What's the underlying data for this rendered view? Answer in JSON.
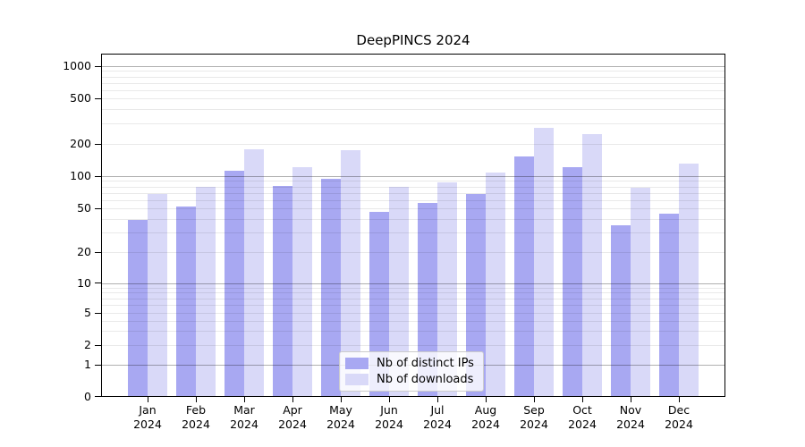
{
  "title": "DeepPINCS 2024",
  "chart_data": {
    "type": "bar",
    "title": "DeepPINCS 2024",
    "categories": [
      "Jan 2024",
      "Feb 2024",
      "Mar 2024",
      "Apr 2024",
      "May 2024",
      "Jun 2024",
      "Jul 2024",
      "Aug 2024",
      "Sep 2024",
      "Oct 2024",
      "Nov 2024",
      "Dec 2024"
    ],
    "series": [
      {
        "name": "Nb of distinct IPs",
        "color": "#a8a8f2",
        "values": [
          39,
          51,
          112,
          80,
          93,
          46,
          56,
          68,
          150,
          121,
          35,
          44
        ]
      },
      {
        "name": "Nb of downloads",
        "color": "#d9d9f8",
        "values": [
          68,
          78,
          175,
          120,
          173,
          78,
          86,
          107,
          275,
          243,
          77,
          129
        ]
      }
    ],
    "xlabel": "",
    "ylabel": "",
    "y_scale": "log (with 0 baseline)",
    "y_ticks": [
      0,
      1,
      2,
      5,
      10,
      20,
      50,
      100,
      200,
      500,
      1000
    ],
    "ylim": [
      0,
      1300
    ],
    "grid": true,
    "legend_position": "lower center"
  },
  "colors": {
    "bar_dark": "#a8a8f2",
    "bar_light": "#d9d9f8",
    "grid_major": "#b0b0b0",
    "grid_minor": "#e9e9e9",
    "axis": "#000000",
    "legend_border": "#cccccc"
  }
}
